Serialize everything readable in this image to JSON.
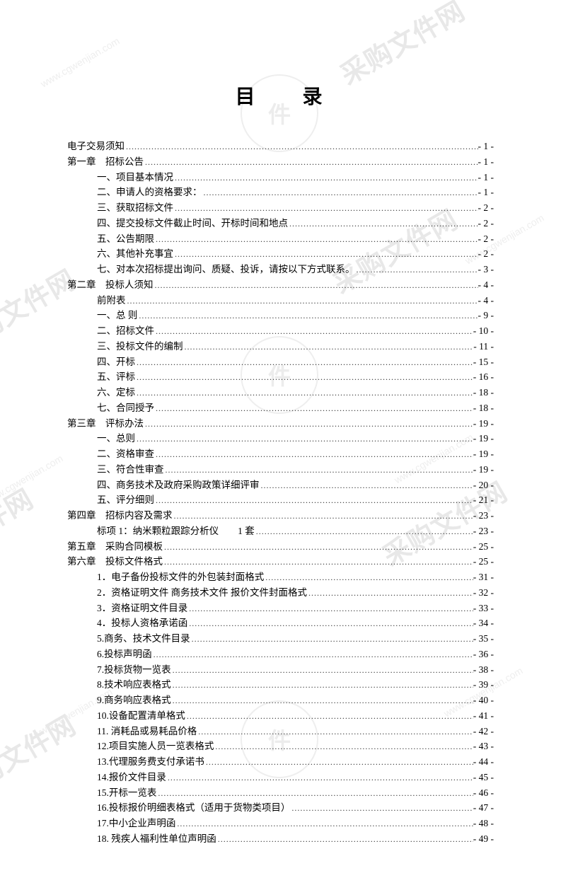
{
  "title": "目 录",
  "watermarks": {
    "main_text": "采购文件网",
    "url_text": "www.cgwenjian.com"
  },
  "toc": [
    {
      "label": "电子交易须知",
      "page": "- 1 -",
      "indent": 0
    },
    {
      "label": "第一章　招标公告",
      "page": "- 1 -",
      "indent": 0
    },
    {
      "label": "一、项目基本情况",
      "page": "- 1 -",
      "indent": 1
    },
    {
      "label": "二、申请人的资格要求：",
      "page": "- 1 -",
      "indent": 1
    },
    {
      "label": "三、获取招标文件",
      "page": "- 2 -",
      "indent": 1
    },
    {
      "label": "四、提交投标文件截止时间、开标时间和地点",
      "page": "- 2 -",
      "indent": 1
    },
    {
      "label": "五、公告期限",
      "page": "- 2 -",
      "indent": 1
    },
    {
      "label": "六、其他补充事宜",
      "page": "- 2 -",
      "indent": 1
    },
    {
      "label": "七、对本次招标提出询问、质疑、投诉，请按以下方式联系。",
      "page": "- 3 -",
      "indent": 1
    },
    {
      "label": "第二章　投标人须知",
      "page": "- 4 -",
      "indent": 0
    },
    {
      "label": "前附表",
      "page": "- 4 -",
      "indent": 1
    },
    {
      "label": "一、总 则",
      "page": "- 9 -",
      "indent": 1
    },
    {
      "label": "二、招标文件",
      "page": "- 10 -",
      "indent": 1
    },
    {
      "label": "三、投标文件的编制",
      "page": "- 11 -",
      "indent": 1
    },
    {
      "label": "四、开标",
      "page": "- 15 -",
      "indent": 1
    },
    {
      "label": "五、评标",
      "page": "- 16 -",
      "indent": 1
    },
    {
      "label": "六、定标",
      "page": "- 18 -",
      "indent": 1
    },
    {
      "label": "七、合同授予",
      "page": "- 18 -",
      "indent": 1
    },
    {
      "label": "第三章　评标办法",
      "page": "- 19 -",
      "indent": 0
    },
    {
      "label": "一、总则",
      "page": "- 19 -",
      "indent": 1
    },
    {
      "label": "二、资格审查",
      "page": "- 19 -",
      "indent": 1
    },
    {
      "label": "三、符合性审查",
      "page": "- 19 -",
      "indent": 1
    },
    {
      "label": "四、商务技术及政府采购政策详细评审",
      "page": "- 20 -",
      "indent": 1
    },
    {
      "label": "五、评分细则",
      "page": "- 21 -",
      "indent": 1
    },
    {
      "label": "第四章　招标内容及需求",
      "page": "- 23 -",
      "indent": 0
    },
    {
      "label": "标项 1：纳米颗粒跟踪分析仪　　1 套",
      "page": "- 23 -",
      "indent": 1
    },
    {
      "label": "第五章　采购合同模板",
      "page": "- 25 -",
      "indent": 0
    },
    {
      "label": "第六章　投标文件格式",
      "page": "- 25 -",
      "indent": 0
    },
    {
      "label": "1．电子备份投标文件的外包装封面格式",
      "page": "- 31 -",
      "indent": 1
    },
    {
      "label": "2．资格证明文件 商务技术文件 报价文件封面格式",
      "page": "- 32 -",
      "indent": 1
    },
    {
      "label": "3．资格证明文件目录",
      "page": "- 33 -",
      "indent": 1
    },
    {
      "label": "4．投标人资格承诺函",
      "page": "- 34 -",
      "indent": 1
    },
    {
      "label": "5.商务、技术文件目录",
      "page": "- 35 -",
      "indent": 1
    },
    {
      "label": "6.投标声明函",
      "page": "- 36 -",
      "indent": 1
    },
    {
      "label": "7.投标货物一览表",
      "page": "- 38 -",
      "indent": 1
    },
    {
      "label": "8.技术响应表格式",
      "page": "- 39 -",
      "indent": 1
    },
    {
      "label": "9.商务响应表格式",
      "page": "- 40 -",
      "indent": 1
    },
    {
      "label": "10.设备配置清单格式",
      "page": "- 41 -",
      "indent": 1
    },
    {
      "label": "11. 消耗品或易耗品价格",
      "page": "- 42 -",
      "indent": 1
    },
    {
      "label": "12.项目实施人员一览表格式",
      "page": "- 43 -",
      "indent": 1
    },
    {
      "label": "13.代理服务费支付承诺书",
      "page": "- 44 -",
      "indent": 1
    },
    {
      "label": "14.报价文件目录",
      "page": "- 45 -",
      "indent": 1
    },
    {
      "label": "15.开标一览表",
      "page": "- 46 -",
      "indent": 1
    },
    {
      "label": "16.投标报价明细表格式（适用于货物类项目）",
      "page": "- 47 -",
      "indent": 1
    },
    {
      "label": "17.中小企业声明函",
      "page": "- 48 -",
      "indent": 1
    },
    {
      "label": "18. 残疾人福利性单位声明函",
      "page": "- 49 -",
      "indent": 1
    }
  ]
}
